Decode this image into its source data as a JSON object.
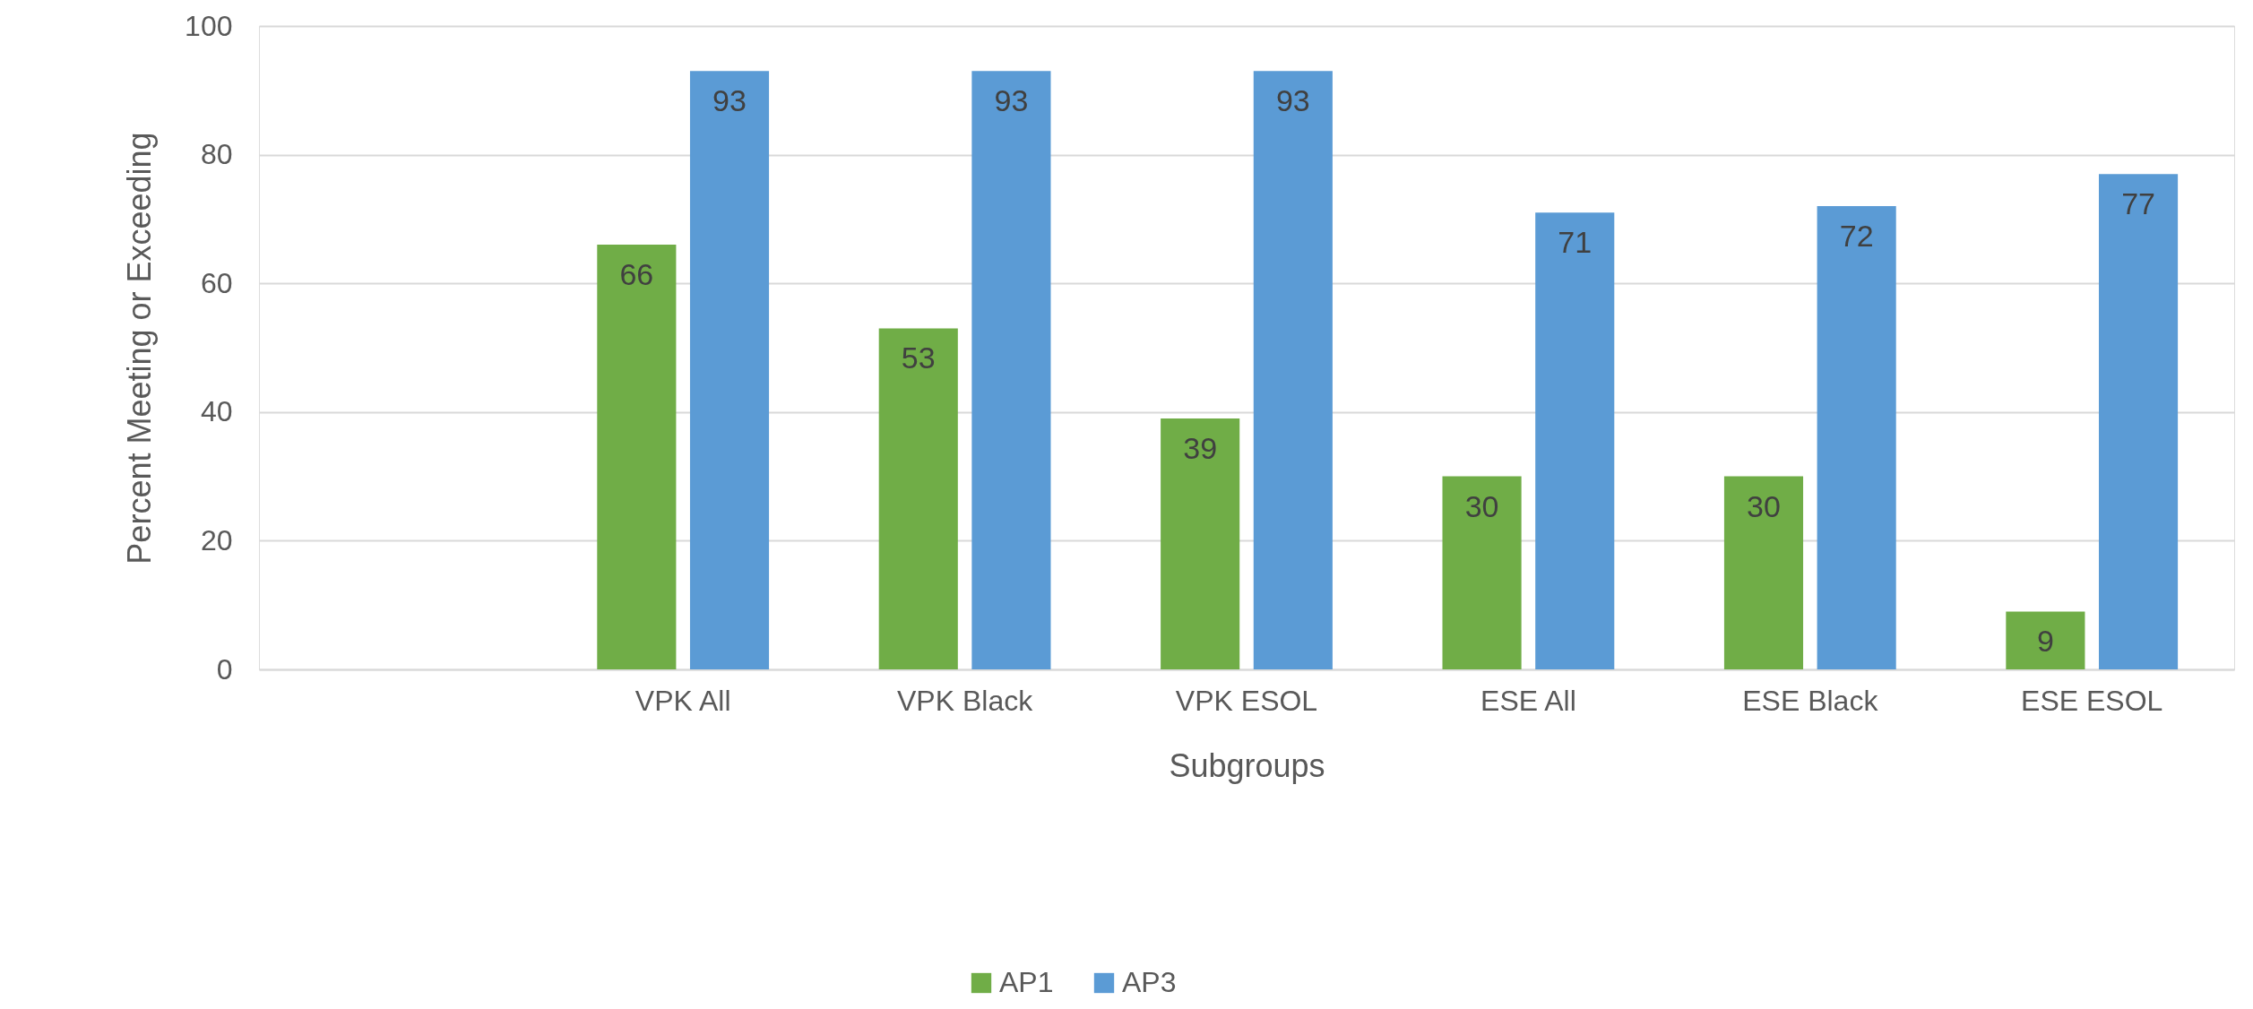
{
  "chart_data": {
    "type": "bar",
    "xlabel": "Subgroups",
    "ylabel": "Percent Meeting or Exceeding",
    "categories": [
      null,
      "VPK All",
      "VPK Black",
      "VPK ESOL",
      "ESE All",
      "ESE Black",
      "ESE ESOL"
    ],
    "series": [
      {
        "name": "AP1",
        "color": "#70ad47",
        "values": [
          null,
          66,
          53,
          39,
          30,
          30,
          9
        ]
      },
      {
        "name": "AP3",
        "color": "#5b9bd5",
        "values": [
          null,
          93,
          93,
          93,
          71,
          72,
          77
        ]
      }
    ],
    "ylim": [
      0,
      100
    ],
    "yticks": [
      0,
      20,
      40,
      60,
      80,
      100
    ],
    "grid": "y",
    "legend": "bottom",
    "data_labels": true
  }
}
